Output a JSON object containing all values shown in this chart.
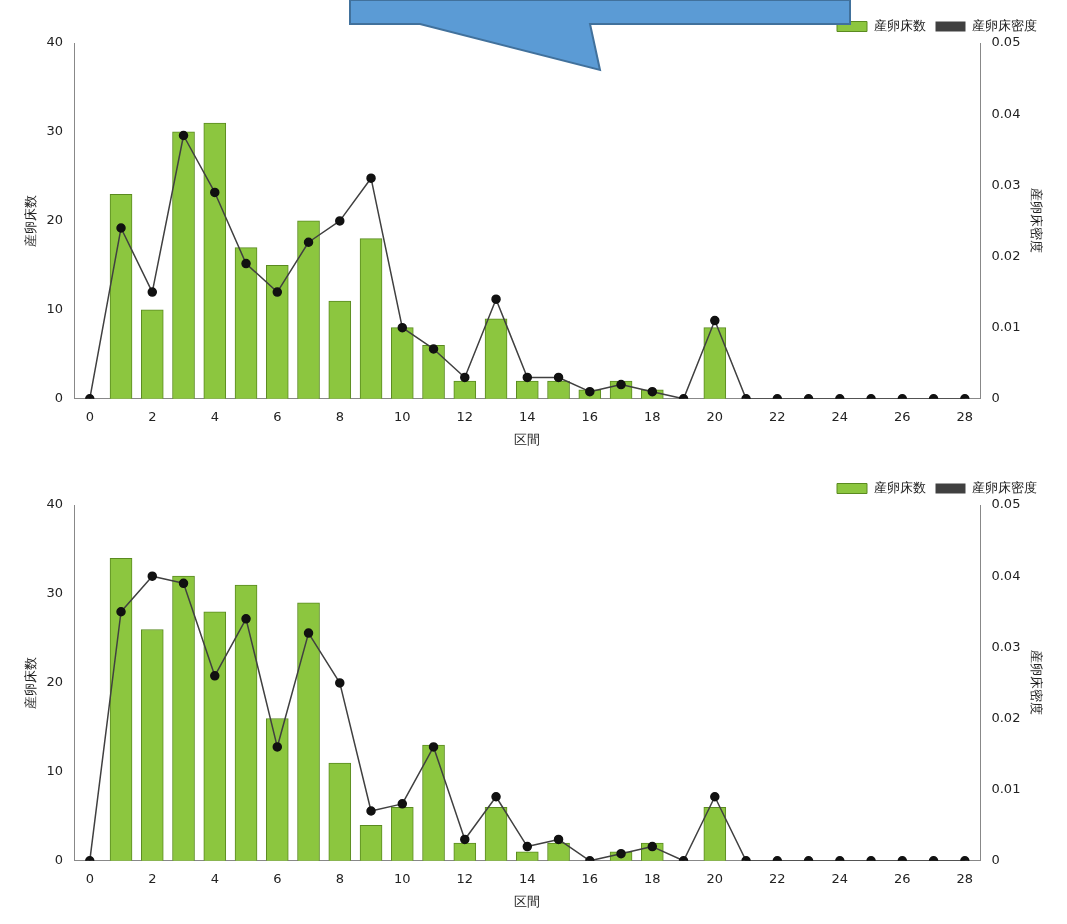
{
  "chart_data": [
    {
      "type": "bar",
      "xlabel": "区間",
      "ylabel": "産卵床数",
      "y2label": "産卵床密度",
      "x": [
        0,
        1,
        2,
        3,
        4,
        5,
        6,
        7,
        8,
        9,
        10,
        11,
        12,
        13,
        14,
        15,
        16,
        17,
        18,
        19,
        20,
        21,
        22,
        23,
        24,
        25,
        26,
        27,
        28
      ],
      "series": [
        {
          "name": "産卵床数",
          "color": "#8cc63f",
          "values": [
            0,
            23,
            10,
            30,
            31,
            17,
            15,
            20,
            11,
            18,
            8,
            6,
            2,
            9,
            2,
            2,
            1,
            2,
            1,
            0,
            8,
            0,
            0,
            0,
            0,
            0,
            0,
            0,
            0
          ]
        },
        {
          "name": "産卵床密度",
          "type": "line",
          "axis": "y2",
          "color": "#404040",
          "marker": "circle",
          "values": [
            0,
            0.024,
            0.015,
            0.037,
            0.029,
            0.019,
            0.015,
            0.022,
            0.025,
            0.031,
            0.01,
            0.007,
            0.003,
            0.014,
            0.003,
            0.003,
            0.001,
            0.002,
            0.001,
            0,
            0.011,
            0,
            0,
            0,
            0,
            0,
            0,
            0,
            0
          ]
        }
      ],
      "xlim": [
        -0.5,
        28.5
      ],
      "xticks": [
        0,
        2,
        4,
        6,
        8,
        10,
        12,
        14,
        16,
        18,
        20,
        22,
        24,
        26,
        28
      ],
      "ylim": [
        0,
        40
      ],
      "yticks": [
        0,
        10,
        20,
        30,
        40
      ],
      "y2lim": [
        0,
        0.05
      ],
      "y2ticks": [
        0,
        0.01,
        0.02,
        0.03,
        0.04,
        0.05
      ],
      "grid": false,
      "legend": "top right"
    },
    {
      "type": "bar",
      "xlabel": "区間",
      "ylabel": "産卵床数",
      "y2label": "産卵床密度",
      "x": [
        0,
        1,
        2,
        3,
        4,
        5,
        6,
        7,
        8,
        9,
        10,
        11,
        12,
        13,
        14,
        15,
        16,
        17,
        18,
        19,
        20,
        21,
        22,
        23,
        24,
        25,
        26,
        27,
        28
      ],
      "series": [
        {
          "name": "産卵床数",
          "color": "#8cc63f",
          "values": [
            0,
            34,
            26,
            32,
            28,
            31,
            16,
            29,
            11,
            4,
            6,
            13,
            2,
            6,
            1,
            2,
            0,
            1,
            2,
            0,
            6,
            0,
            0,
            0,
            0,
            0,
            0,
            0,
            0
          ]
        },
        {
          "name": "産卵床密度",
          "type": "line",
          "axis": "y2",
          "color": "#404040",
          "marker": "circle",
          "values": [
            0,
            0.035,
            0.04,
            0.039,
            0.026,
            0.034,
            0.016,
            0.032,
            0.025,
            0.007,
            0.008,
            0.016,
            0.003,
            0.009,
            0.002,
            0.003,
            0,
            0.001,
            0.002,
            0,
            0.009,
            0,
            0,
            0,
            0,
            0,
            0,
            0,
            0
          ]
        }
      ],
      "xlim": [
        -0.5,
        28.5
      ],
      "xticks": [
        0,
        2,
        4,
        6,
        8,
        10,
        12,
        14,
        16,
        18,
        20,
        22,
        24,
        26,
        28
      ],
      "ylim": [
        0,
        40
      ],
      "yticks": [
        0,
        10,
        20,
        30,
        40
      ],
      "y2lim": [
        0,
        0.05
      ],
      "y2ticks": [
        0,
        0.01,
        0.02,
        0.03,
        0.04,
        0.05
      ],
      "grid": false,
      "legend": "top right"
    }
  ]
}
